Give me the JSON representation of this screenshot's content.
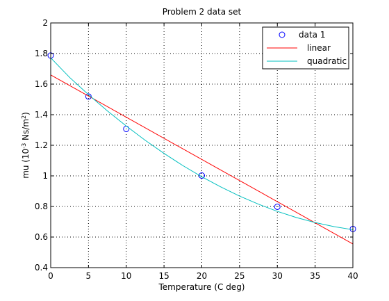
{
  "chart_data": {
    "type": "line",
    "title": "Problem 2 data set",
    "xlabel": "Temperature (C deg)",
    "ylabel_main": "mu (10",
    "ylabel_sup1": "-3",
    "ylabel_mid": " Ns/m",
    "ylabel_sup2": "2",
    "ylabel_end": ")",
    "xlim": [
      0,
      40
    ],
    "ylim": [
      0.4,
      2
    ],
    "xticks": [
      0,
      5,
      10,
      15,
      20,
      25,
      30,
      35,
      40
    ],
    "yticks": [
      0.4,
      0.6,
      0.8,
      1,
      1.2,
      1.4,
      1.6,
      1.8,
      2
    ],
    "xtick_labels": [
      "0",
      "5",
      "10",
      "15",
      "20",
      "25",
      "30",
      "35",
      "40"
    ],
    "ytick_labels": [
      "0.4",
      "0.6",
      "0.8",
      "1",
      "1.2",
      "1.4",
      "1.6",
      "1.8",
      "2"
    ],
    "grid": true,
    "legend_position": "top-right",
    "series": [
      {
        "name": "data 1",
        "kind": "scatter",
        "marker": "circle",
        "color": "#0000ff",
        "x": [
          0,
          5,
          10,
          20,
          30,
          40
        ],
        "y": [
          1.787,
          1.519,
          1.307,
          1.002,
          0.798,
          0.653
        ]
      },
      {
        "name": "linear",
        "kind": "line",
        "color": "#ff0000",
        "x": [
          0,
          40
        ],
        "y": [
          1.66,
          0.555
        ]
      },
      {
        "name": "quadratic",
        "kind": "line",
        "color": "#00bfbf",
        "x": [
          0,
          2.5,
          5,
          7.5,
          10,
          12.5,
          15,
          17.5,
          20,
          22.5,
          25,
          27.5,
          30,
          32.5,
          35,
          37.5,
          40
        ],
        "y": [
          1.772,
          1.644,
          1.531,
          1.425,
          1.326,
          1.233,
          1.147,
          1.067,
          0.994,
          0.928,
          0.868,
          0.815,
          0.768,
          0.728,
          0.695,
          0.668,
          0.648
        ]
      }
    ]
  }
}
